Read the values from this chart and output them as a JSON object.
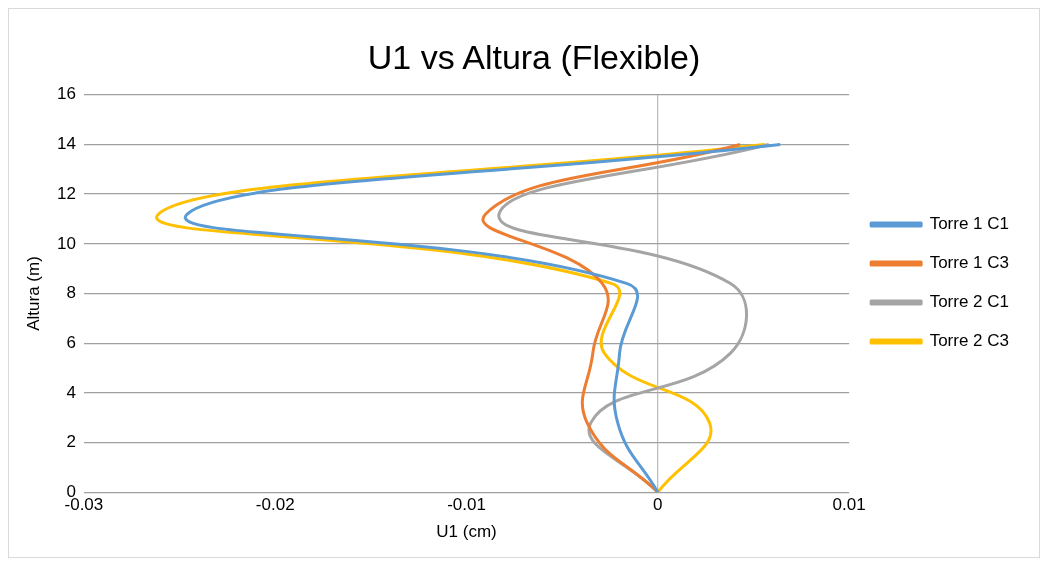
{
  "chart_data": {
    "type": "line",
    "title": "U1 vs Altura (Flexible)",
    "xlabel": "U1 (cm)",
    "ylabel": "Altura (m)",
    "xlim": [
      -0.03,
      0.01
    ],
    "xticks": [
      -0.03,
      -0.02,
      -0.01,
      0,
      0.01
    ],
    "ylim": [
      0,
      16
    ],
    "yticks": [
      0,
      2,
      4,
      6,
      8,
      10,
      12,
      14,
      16
    ],
    "grid": "y",
    "legend": "right",
    "marker": "none",
    "line_style": "solid",
    "series": [
      {
        "name": "Torre 1 C1",
        "color": "#5b9bd5",
        "x": [
          0,
          -0.0021,
          -0.002,
          -0.0016,
          -0.0246,
          0.0064
        ],
        "values": [
          0,
          2.8,
          5.6,
          8.4,
          11.2,
          14
        ]
      },
      {
        "name": "Torre 1 C3",
        "color": "#ed7d31",
        "x": [
          0,
          -0.0037,
          -0.0034,
          -0.0029,
          -0.009,
          0.0043
        ],
        "values": [
          0,
          2.8,
          5.6,
          8.4,
          11.2,
          14
        ]
      },
      {
        "name": "Torre 2 C1",
        "color": "#a5a5a5",
        "x": [
          0,
          -0.0035,
          0.0038,
          0.0038,
          -0.0083,
          0.0058
        ],
        "values": [
          0,
          2.8,
          5.6,
          8.4,
          11.2,
          14
        ]
      },
      {
        "name": "Torre 2 C3",
        "color": "#ffc000",
        "x": [
          0,
          0.0027,
          -0.0028,
          -0.0024,
          -0.0261,
          0.0056
        ],
        "values": [
          0,
          2.8,
          5.6,
          8.4,
          11.2,
          14
        ]
      }
    ]
  }
}
